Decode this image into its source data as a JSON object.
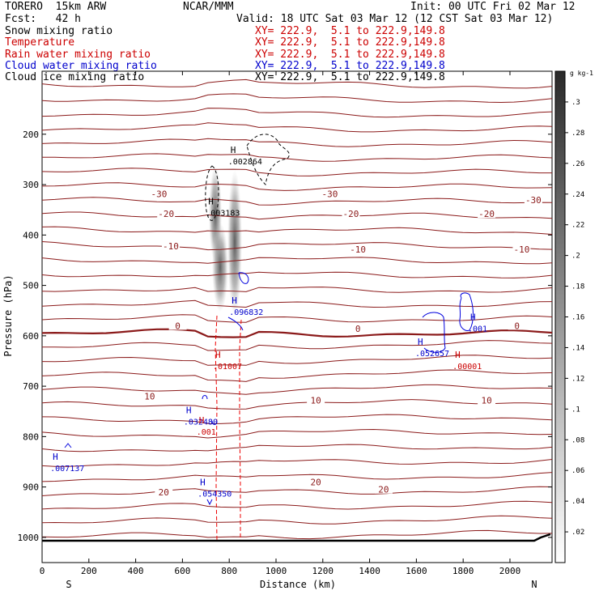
{
  "header": {
    "model": "TORERO  15km ARW",
    "center": "NCAR/MMM",
    "init": "Init: 00 UTC Fri 02 Mar 12",
    "fcst": "Fcst:   42 h",
    "valid": "Valid: 18 UTC Sat 03 Mar 12 (12 CST Sat 03 Mar 12)"
  },
  "fields": [
    {
      "name": "Snow mixing ratio",
      "xy": "XY= 222.9,  5.1 to 222.9,149.8",
      "color": "#000000"
    },
    {
      "name": "Temperature",
      "xy": "XY= 222.9,  5.1 to 222.9,149.8",
      "color": "#cc0000"
    },
    {
      "name": "Rain water mixing ratio",
      "xy": "XY= 222.9,  5.1 to 222.9,149.8",
      "color": "#cc0000"
    },
    {
      "name": "Cloud water mixing ratio",
      "xy": "XY= 222.9,  5.1 to 222.9,149.8",
      "color": "#0000cc"
    },
    {
      "name": "Cloud ice mixing ratio",
      "xy": "XY= 222.9,  5.1 to 222.9,149.8",
      "color": "#000000"
    }
  ],
  "chart_data": {
    "type": "cross-section",
    "xlabel": "Distance (km)",
    "ylabel": "Pressure (hPa)",
    "xlim": [
      0,
      2180
    ],
    "ylim": [
      1050,
      75
    ],
    "x_ticks": [
      0,
      200,
      400,
      600,
      800,
      1000,
      1200,
      1400,
      1600,
      1800,
      2000
    ],
    "y_ticks": [
      200,
      300,
      400,
      500,
      600,
      700,
      800,
      900,
      1000
    ],
    "end_labels": {
      "left": "S",
      "right": "N"
    },
    "colorbar": {
      "unit": "g kg-1",
      "ticks": [
        ".02",
        ".04",
        ".06",
        ".08",
        ".1",
        ".12",
        ".14",
        ".16",
        ".18",
        ".2",
        ".22",
        ".24",
        ".26",
        ".28",
        ".3"
      ]
    },
    "temperature_labels": [
      {
        "x": 500,
        "p": 318,
        "text": "-30"
      },
      {
        "x": 1230,
        "p": 318,
        "text": "-30"
      },
      {
        "x": 2100,
        "p": 330,
        "text": "-30"
      },
      {
        "x": 530,
        "p": 358,
        "text": "-20"
      },
      {
        "x": 1320,
        "p": 358,
        "text": "-20"
      },
      {
        "x": 1900,
        "p": 358,
        "text": "-20"
      },
      {
        "x": 550,
        "p": 422,
        "text": "-10"
      },
      {
        "x": 1350,
        "p": 428,
        "text": "-10"
      },
      {
        "x": 2050,
        "p": 428,
        "text": "-10"
      },
      {
        "x": 580,
        "p": 580,
        "text": "0"
      },
      {
        "x": 1350,
        "p": 586,
        "text": "0"
      },
      {
        "x": 2030,
        "p": 580,
        "text": "0"
      },
      {
        "x": 460,
        "p": 720,
        "text": "10"
      },
      {
        "x": 1170,
        "p": 728,
        "text": "10"
      },
      {
        "x": 1900,
        "p": 728,
        "text": "10"
      },
      {
        "x": 520,
        "p": 910,
        "text": "20"
      },
      {
        "x": 1170,
        "p": 890,
        "text": "20"
      },
      {
        "x": 1460,
        "p": 905,
        "text": "20"
      }
    ],
    "maxima": [
      {
        "x": 795,
        "p": 253,
        "text": ".002864",
        "color": "#000000"
      },
      {
        "x": 700,
        "p": 355,
        "text": ".003183",
        "color": "#000000"
      },
      {
        "x": 800,
        "p": 552,
        "text": ".096832",
        "color": "#0000cc"
      },
      {
        "x": 730,
        "p": 660,
        "text": ".01007",
        "color": "#cc0000"
      },
      {
        "x": 1595,
        "p": 634,
        "text": ".052657",
        "color": "#0000cc"
      },
      {
        "x": 1755,
        "p": 660,
        "text": ".00001",
        "color": "#cc0000"
      },
      {
        "x": 605,
        "p": 770,
        "text": ".032480",
        "color": "#0000cc"
      },
      {
        "x": 660,
        "p": 790,
        "text": ".001",
        "color": "#cc0000"
      },
      {
        "x": 35,
        "p": 862,
        "text": ".007137",
        "color": "#0000cc"
      },
      {
        "x": 665,
        "p": 913,
        "text": ".054350",
        "color": "#0000cc"
      },
      {
        "x": 1820,
        "p": 585,
        "text": ".001",
        "color": "#0000cc"
      }
    ]
  }
}
